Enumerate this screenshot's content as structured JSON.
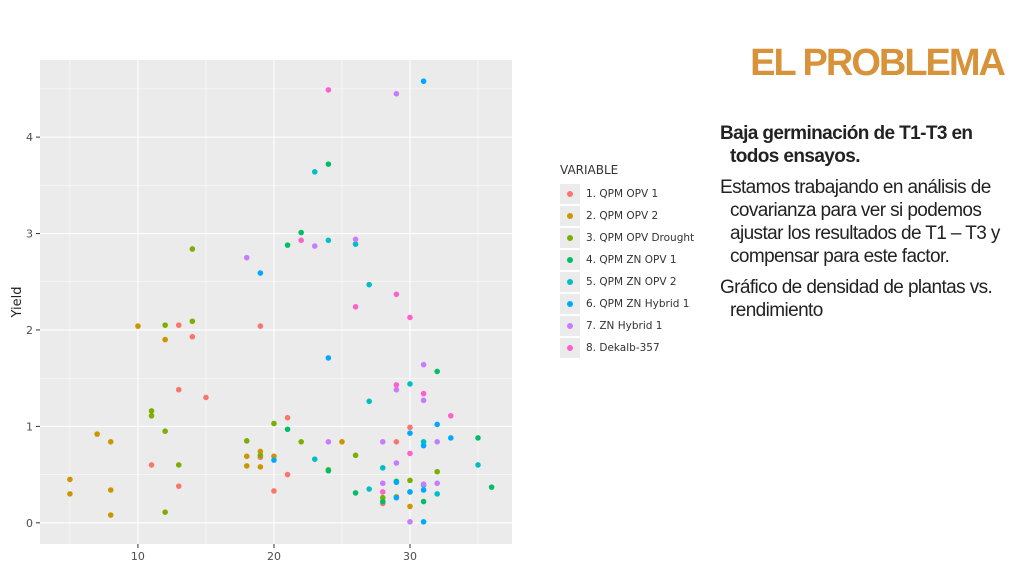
{
  "slide": {
    "title": "EL PROBLEMA",
    "bullets": [
      "Baja germinación de T1-T3 en todos ensayos.",
      "Estamos trabajando en análisis de covarianza para ver si podemos ajustar los resultados de T1 – T3 y compensar para este factor.",
      "Gráfico de densidad de plantas vs. rendimiento"
    ]
  },
  "colors": {
    "title": "#d8933a",
    "panel_bg": "#ebebeb",
    "grid": "#ffffff"
  },
  "chart_data": {
    "type": "scatter",
    "title": "",
    "xlabel": "",
    "ylabel": "Yield",
    "xlim": [
      2.8,
      37.5
    ],
    "ylim": [
      -0.22,
      4.8
    ],
    "x_ticks": [
      10,
      20,
      30
    ],
    "y_ticks": [
      0,
      1,
      2,
      3,
      4
    ],
    "grid": true,
    "legend_title": "VARIABLE",
    "legend_position": "right",
    "series": [
      {
        "name": "1. QPM OPV 1",
        "color": "#F8766D",
        "points": [
          [
            11,
            0.6
          ],
          [
            13,
            2.05
          ],
          [
            13,
            1.38
          ],
          [
            13,
            0.38
          ],
          [
            14,
            1.93
          ],
          [
            15,
            1.3
          ],
          [
            19,
            2.04
          ],
          [
            19,
            0.68
          ],
          [
            20,
            0.33
          ],
          [
            21,
            1.09
          ],
          [
            21,
            0.5
          ],
          [
            29,
            0.84
          ],
          [
            28,
            0.2
          ],
          [
            30,
            0.99
          ]
        ]
      },
      {
        "name": "2. QPM OPV 2",
        "color": "#CD9600",
        "points": [
          [
            5,
            0.45
          ],
          [
            5,
            0.3
          ],
          [
            7,
            0.92
          ],
          [
            8,
            0.84
          ],
          [
            8,
            0.34
          ],
          [
            8,
            0.08
          ],
          [
            10,
            2.04
          ],
          [
            12,
            1.9
          ],
          [
            18,
            0.69
          ],
          [
            18,
            0.59
          ],
          [
            19,
            0.74
          ],
          [
            19,
            0.58
          ],
          [
            20,
            0.69
          ],
          [
            25,
            0.84
          ],
          [
            30,
            0.17
          ],
          [
            29,
            0.27
          ]
        ]
      },
      {
        "name": "3. QPM OPV Drought",
        "color": "#7CAE00",
        "points": [
          [
            11,
            1.16
          ],
          [
            11,
            1.11
          ],
          [
            12,
            2.05
          ],
          [
            12,
            0.95
          ],
          [
            12,
            0.11
          ],
          [
            13,
            0.6
          ],
          [
            14,
            2.84
          ],
          [
            14,
            2.09
          ],
          [
            18,
            0.85
          ],
          [
            19,
            0.7
          ],
          [
            20,
            1.03
          ],
          [
            22,
            0.84
          ],
          [
            24,
            0.55
          ],
          [
            26,
            0.7
          ],
          [
            28,
            0.26
          ],
          [
            30,
            0.44
          ],
          [
            32,
            0.53
          ]
        ]
      },
      {
        "name": "4. QPM ZN OPV 1",
        "color": "#00BE67",
        "points": [
          [
            21,
            2.88
          ],
          [
            21,
            0.97
          ],
          [
            22,
            3.01
          ],
          [
            24,
            3.72
          ],
          [
            24,
            0.54
          ],
          [
            26,
            0.31
          ],
          [
            28,
            0.22
          ],
          [
            29,
            0.43
          ],
          [
            30,
            0.32
          ],
          [
            31,
            0.22
          ],
          [
            32,
            1.57
          ],
          [
            35,
            0.88
          ],
          [
            36,
            0.37
          ]
        ]
      },
      {
        "name": "5. QPM ZN OPV 2",
        "color": "#00BFC4",
        "points": [
          [
            23,
            3.64
          ],
          [
            24,
            2.93
          ],
          [
            26,
            2.89
          ],
          [
            27,
            2.47
          ],
          [
            27,
            1.26
          ],
          [
            23,
            0.66
          ],
          [
            27,
            0.35
          ],
          [
            28,
            0.57
          ],
          [
            30,
            1.44
          ],
          [
            31,
            0.84
          ],
          [
            31,
            0.39
          ],
          [
            32,
            0.3
          ],
          [
            35,
            0.6
          ]
        ]
      },
      {
        "name": "6. QPM ZN Hybrid 1",
        "color": "#00A9FF",
        "points": [
          [
            31,
            4.58
          ],
          [
            24,
            1.71
          ],
          [
            19,
            2.59
          ],
          [
            20,
            0.65
          ],
          [
            29,
            0.42
          ],
          [
            29,
            0.26
          ],
          [
            30,
            0.93
          ],
          [
            30,
            0.32
          ],
          [
            31,
            0.01
          ],
          [
            31,
            0.34
          ],
          [
            32,
            1.02
          ],
          [
            33,
            0.88
          ],
          [
            31,
            0.8
          ]
        ]
      },
      {
        "name": "7. ZN Hybrid 1",
        "color": "#C77CFF",
        "points": [
          [
            29,
            4.45
          ],
          [
            18,
            2.75
          ],
          [
            23,
            2.87
          ],
          [
            26,
            2.94
          ],
          [
            28,
            0.84
          ],
          [
            28,
            0.41
          ],
          [
            29,
            1.38
          ],
          [
            29,
            0.62
          ],
          [
            30,
            0.01
          ],
          [
            31,
            1.64
          ],
          [
            31,
            1.27
          ],
          [
            31,
            0.4
          ],
          [
            32,
            0.41
          ],
          [
            32,
            0.84
          ],
          [
            24,
            0.84
          ]
        ]
      },
      {
        "name": "8. Dekalb-357",
        "color": "#FF61CC",
        "points": [
          [
            24,
            4.49
          ],
          [
            22,
            2.93
          ],
          [
            26,
            2.24
          ],
          [
            29,
            2.37
          ],
          [
            30,
            2.13
          ],
          [
            29,
            1.43
          ],
          [
            31,
            1.34
          ],
          [
            33,
            1.11
          ],
          [
            30,
            0.72
          ],
          [
            28,
            0.32
          ]
        ]
      }
    ]
  }
}
